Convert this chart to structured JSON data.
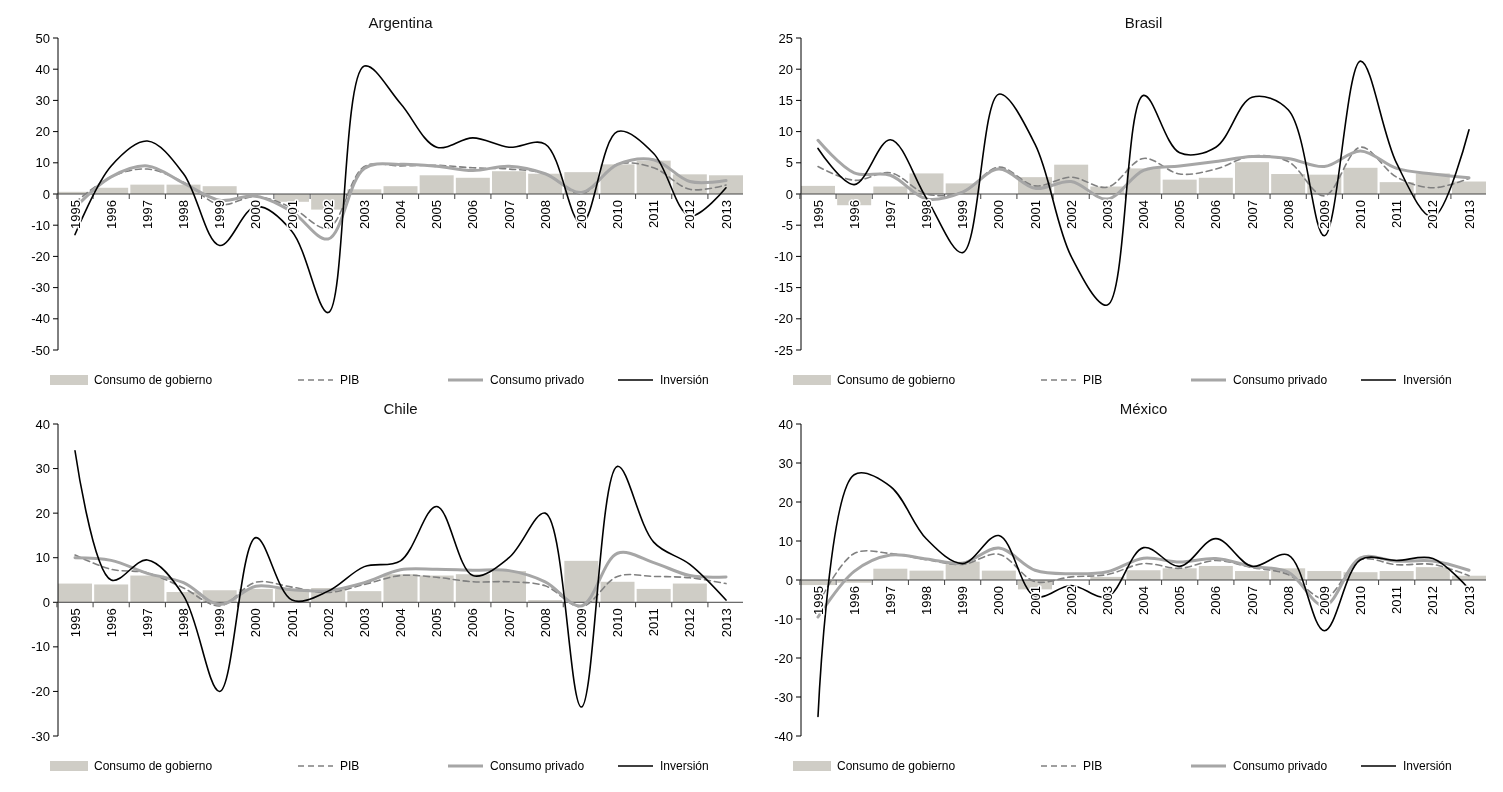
{
  "chart_data": [
    {
      "type": "bar",
      "title": "Argentina",
      "categories": [
        "1995",
        "1996",
        "1997",
        "1998",
        "1999",
        "2000",
        "2001",
        "2002",
        "2003",
        "2004",
        "2005",
        "2006",
        "2007",
        "2008",
        "2009",
        "2010",
        "2011",
        "2012",
        "2013"
      ],
      "ylim": [
        -50,
        50
      ],
      "yticks": [
        -50,
        -40,
        -30,
        -20,
        -10,
        0,
        10,
        20,
        30,
        40,
        50
      ],
      "legend": "bottom",
      "grid": false,
      "series": [
        {
          "name": "Consumo de gobierno",
          "type": "bar",
          "color": "#cfcdc6",
          "values": [
            0.7,
            2,
            3,
            3,
            2.5,
            null,
            -2.5,
            -5,
            1.5,
            2.5,
            6,
            5.2,
            7.3,
            6.5,
            7,
            9.5,
            10.7,
            6.3,
            6
          ]
        },
        {
          "name": "PIB",
          "type": "line",
          "line_style": "dashed",
          "color": "#808080",
          "values": [
            -2.8,
            5.5,
            8,
            3.8,
            -3.4,
            -0.8,
            -4.4,
            -10.9,
            8.8,
            9,
            9.2,
            8.4,
            8,
            6.5,
            0.1,
            9.5,
            8.4,
            1.5,
            2.9
          ]
        },
        {
          "name": "Consumo privado",
          "type": "line",
          "line_style": "solid",
          "color": "#a6a6a6",
          "values": [
            -4.4,
            5.5,
            9,
            3.5,
            -2,
            -0.7,
            -5.7,
            -14.4,
            8.2,
            9.5,
            8.9,
            7.5,
            8.9,
            6.5,
            0.5,
            9.5,
            11,
            4,
            4.3
          ]
        },
        {
          "name": "Inversión",
          "type": "line",
          "line_style": "solid",
          "color": "#000000",
          "values": [
            -13,
            9,
            17,
            6.5,
            -16.5,
            -4,
            -12,
            -38,
            41,
            29,
            15,
            18,
            15,
            16,
            -9.5,
            20,
            13,
            -7,
            2
          ]
        }
      ]
    },
    {
      "type": "bar",
      "title": "Brasil",
      "categories": [
        "1995",
        "1996",
        "1997",
        "1998",
        "1999",
        "2000",
        "2001",
        "2002",
        "2003",
        "2004",
        "2005",
        "2006",
        "2007",
        "2008",
        "2009",
        "2010",
        "2011",
        "2012",
        "2013"
      ],
      "ylim": [
        -25,
        25
      ],
      "yticks": [
        -25,
        -20,
        -15,
        -10,
        -5,
        0,
        5,
        10,
        15,
        20,
        25
      ],
      "legend": "bottom",
      "grid": false,
      "series": [
        {
          "name": "Consumo de gobierno",
          "type": "bar",
          "color": "#cfcdc6",
          "values": [
            1.3,
            -1.8,
            1.2,
            3.3,
            1.7,
            0,
            2.7,
            4.7,
            1.2,
            4.1,
            2.3,
            2.6,
            5.1,
            3.2,
            3.1,
            4.2,
            1.9,
            3.3,
            2
          ]
        },
        {
          "name": "PIB",
          "type": "line",
          "line_style": "dashed",
          "color": "#808080",
          "values": [
            4.4,
            2.2,
            3.4,
            0,
            0.3,
            4.3,
            1.3,
            2.7,
            1.1,
            5.7,
            3.2,
            4,
            6.1,
            5.2,
            -0.3,
            7.5,
            2.7,
            1,
            2.5
          ]
        },
        {
          "name": "Consumo privado",
          "type": "line",
          "line_style": "solid",
          "color": "#a6a6a6",
          "values": [
            8.6,
            3.4,
            3,
            -0.8,
            0.3,
            4,
            0.9,
            2,
            -0.8,
            3.8,
            4.5,
            5.2,
            6,
            5.7,
            4.4,
            6.9,
            4.1,
            3.2,
            2.6
          ]
        },
        {
          "name": "Inversión",
          "type": "line",
          "line_style": "solid",
          "color": "#000000",
          "values": [
            7.3,
            1.5,
            8.7,
            -0.7,
            -9.4,
            16,
            8,
            -10,
            -17.8,
            15.8,
            6.6,
            7.5,
            15.5,
            13.5,
            -6.7,
            21.3,
            4.9,
            -3.7,
            10.3
          ]
        }
      ]
    },
    {
      "type": "bar",
      "title": "Chile",
      "categories": [
        "1995",
        "1996",
        "1997",
        "1998",
        "1999",
        "2000",
        "2001",
        "2002",
        "2003",
        "2004",
        "2005",
        "2006",
        "2007",
        "2008",
        "2009",
        "2010",
        "2011",
        "2012",
        "2013"
      ],
      "ylim": [
        -30,
        40
      ],
      "yticks": [
        -30,
        -20,
        -10,
        0,
        10,
        20,
        30,
        40
      ],
      "legend": "bottom",
      "grid": false,
      "series": [
        {
          "name": "Consumo de gobierno",
          "type": "bar",
          "color": "#cfcdc6",
          "values": [
            4.2,
            4,
            6,
            2.3,
            2.7,
            3,
            3,
            3.2,
            2.5,
            6.3,
            6,
            6.3,
            7,
            0.5,
            9.3,
            4.6,
            3,
            4.2,
            null
          ]
        },
        {
          "name": "PIB",
          "type": "line",
          "line_style": "dashed",
          "color": "#808080",
          "values": [
            10.6,
            7.4,
            6.6,
            3.2,
            -0.8,
            4.5,
            3.4,
            2.2,
            4,
            6,
            5.6,
            4.6,
            4.6,
            3.7,
            -1,
            5.8,
            5.8,
            5.5,
            4.2
          ]
        },
        {
          "name": "Consumo privado",
          "type": "line",
          "line_style": "solid",
          "color": "#a6a6a6",
          "values": [
            10,
            9.4,
            6.5,
            4.4,
            -0.5,
            3.6,
            2.8,
            2.6,
            4.4,
            7.3,
            7.4,
            7.2,
            7.1,
            4.6,
            -0.8,
            11,
            8.9,
            6,
            5.7
          ]
        },
        {
          "name": "Inversión",
          "type": "line",
          "line_style": "solid",
          "color": "#000000",
          "values": [
            34,
            5,
            9.5,
            1.5,
            -20,
            14.5,
            0.5,
            2.5,
            8,
            9.3,
            21.5,
            6,
            10,
            20,
            -23.5,
            30.5,
            13.5,
            8.5,
            0.5
          ]
        }
      ]
    },
    {
      "type": "bar",
      "title": "México",
      "categories": [
        "1995",
        "1996",
        "1997",
        "1998",
        "1999",
        "2000",
        "2001",
        "2002",
        "2003",
        "2004",
        "2005",
        "2006",
        "2007",
        "2008",
        "2009",
        "2010",
        "2011",
        "2012",
        "2013"
      ],
      "ylim": [
        -40,
        40
      ],
      "yticks": [
        -40,
        -30,
        -20,
        -10,
        0,
        10,
        20,
        30,
        40
      ],
      "legend": "bottom",
      "grid": false,
      "series": [
        {
          "name": "Consumo de gobierno",
          "type": "bar",
          "color": "#cfcdc6",
          "values": [
            -1.3,
            -0.7,
            2.9,
            2.4,
            4.7,
            2.4,
            -2.4,
            0,
            0.8,
            2.5,
            3,
            3.6,
            2.3,
            3,
            2.3,
            2,
            2.3,
            3.3,
            1.1
          ]
        },
        {
          "name": "PIB",
          "type": "line",
          "line_style": "dashed",
          "color": "#808080",
          "values": [
            -6.2,
            6.8,
            6.8,
            5.2,
            4,
            6.6,
            -0.4,
            0.8,
            1.4,
            4.2,
            3,
            5,
            3.2,
            1.4,
            -4.7,
            5.2,
            3.9,
            4,
            1.1
          ]
        },
        {
          "name": "Consumo privado",
          "type": "line",
          "line_style": "solid",
          "color": "#a6a6a6",
          "values": [
            -9.5,
            2.2,
            6.4,
            5.4,
            4.3,
            8.2,
            2.5,
            1.6,
            2.1,
            5.6,
            4.6,
            5.5,
            3.5,
            2,
            -6.6,
            5.7,
            4.8,
            4.9,
            2.5
          ]
        },
        {
          "name": "Inversión",
          "type": "line",
          "line_style": "solid",
          "color": "#000000",
          "values": [
            -35,
            27,
            24,
            10.5,
            4.2,
            11.4,
            -4.2,
            -1.4,
            -4.3,
            8.3,
            3.5,
            10.6,
            3.5,
            6.4,
            -13,
            5.2,
            5,
            5.5,
            -2.3
          ]
        }
      ]
    }
  ]
}
